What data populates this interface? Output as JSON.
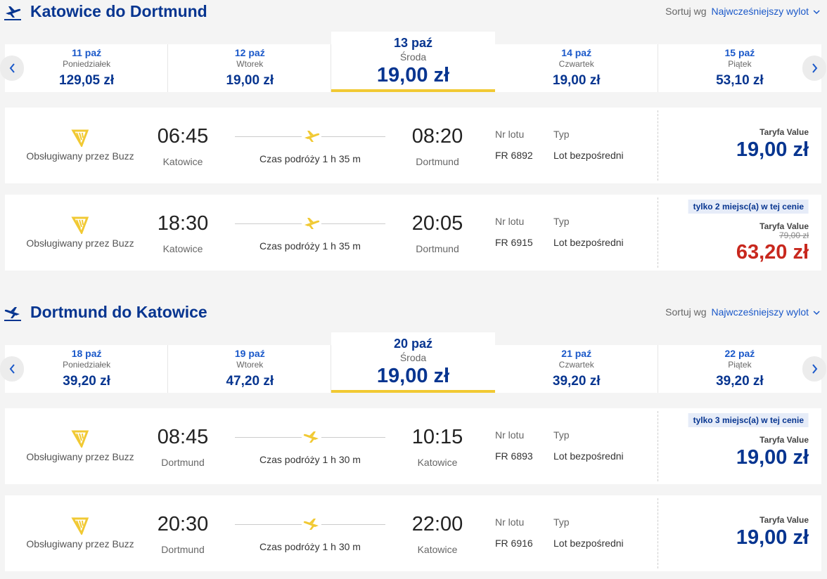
{
  "sections": [
    {
      "title": "Katowice do Dortmund",
      "sort_label": "Sortuj wg",
      "sort_value": "Najwcześniejszy wylot",
      "dates": [
        {
          "date": "11 paź",
          "day": "Poniedziałek",
          "price": "129,05 zł"
        },
        {
          "date": "12 paź",
          "day": "Wtorek",
          "price": "19,00 zł"
        },
        {
          "date": "13 paź",
          "day": "Środa",
          "price": "19,00 zł",
          "selected": true
        },
        {
          "date": "14 paź",
          "day": "Czwartek",
          "price": "19,00 zł"
        },
        {
          "date": "15 paź",
          "day": "Piątek",
          "price": "53,10 zł"
        }
      ],
      "flights": [
        {
          "operator": "Obsługiwany przez Buzz",
          "dep_time": "06:45",
          "dep_city": "Katowice",
          "duration": "Czas podróży 1 h 35 m",
          "arr_time": "08:20",
          "arr_city": "Dortmund",
          "flight_no_label": "Nr lotu",
          "flight_no": "FR 6892",
          "type_label": "Typ",
          "type": "Lot bezpośredni",
          "fare_label": "Taryfa Value",
          "price": "19,00 zł"
        },
        {
          "operator": "Obsługiwany przez Buzz",
          "dep_time": "18:30",
          "dep_city": "Katowice",
          "duration": "Czas podróży 1 h 35 m",
          "arr_time": "20:05",
          "arr_city": "Dortmund",
          "flight_no_label": "Nr lotu",
          "flight_no": "FR 6915",
          "type_label": "Typ",
          "type": "Lot bezpośredni",
          "badge": "tylko 2 miejsc(a) w tej cenie",
          "fare_label": "Taryfa Value",
          "old_price": "79,00 zł",
          "price": "63,20 zł"
        }
      ]
    },
    {
      "title": "Dortmund do Katowice",
      "sort_label": "Sortuj wg",
      "sort_value": "Najwcześniejszy wylot",
      "dates": [
        {
          "date": "18 paź",
          "day": "Poniedziałek",
          "price": "39,20 zł"
        },
        {
          "date": "19 paź",
          "day": "Wtorek",
          "price": "47,20 zł"
        },
        {
          "date": "20 paź",
          "day": "Środa",
          "price": "19,00 zł",
          "selected": true
        },
        {
          "date": "21 paź",
          "day": "Czwartek",
          "price": "39,20 zł"
        },
        {
          "date": "22 paź",
          "day": "Piątek",
          "price": "39,20 zł"
        }
      ],
      "flights": [
        {
          "operator": "Obsługiwany przez Buzz",
          "dep_time": "08:45",
          "dep_city": "Dortmund",
          "duration": "Czas podróży 1 h 30 m",
          "arr_time": "10:15",
          "arr_city": "Katowice",
          "flight_no_label": "Nr lotu",
          "flight_no": "FR 6893",
          "type_label": "Typ",
          "type": "Lot bezpośredni",
          "badge": "tylko 3 miejsc(a) w tej cenie",
          "fare_label": "Taryfa Value",
          "price": "19,00 zł"
        },
        {
          "operator": "Obsługiwany przez Buzz",
          "dep_time": "20:30",
          "dep_city": "Dortmund",
          "duration": "Czas podróży 1 h 30 m",
          "arr_time": "22:00",
          "arr_city": "Katowice",
          "flight_no_label": "Nr lotu",
          "flight_no": "FR 6916",
          "type_label": "Typ",
          "type": "Lot bezpośredni",
          "fare_label": "Taryfa Value",
          "price": "19,00 zł"
        }
      ]
    }
  ]
}
